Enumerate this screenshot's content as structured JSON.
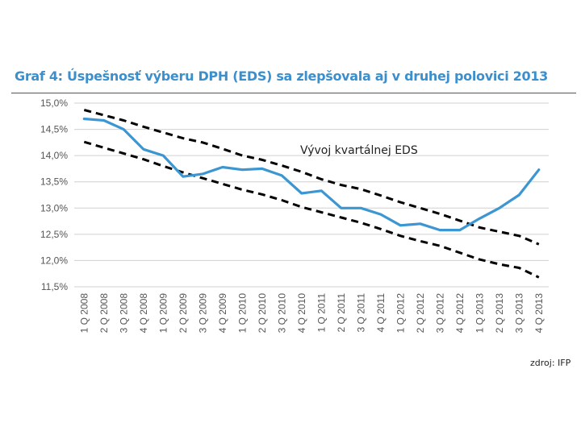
{
  "chart_data": {
    "type": "line",
    "title": "Graf 4: Úspešnosť výberu DPH (EDS) sa zlepšovala aj v druhej polovici 2013",
    "source": "zdroj: IFP",
    "annotation": "Vývoj kvartálnej EDS",
    "categories": [
      "1 Q 2008",
      "2 Q 2008",
      "3 Q 2008",
      "4 Q 2008",
      "1 Q 2009",
      "2 Q 2009",
      "3 Q 2009",
      "4 Q 2009",
      "1 Q 2010",
      "2 Q 2010",
      "3 Q 2010",
      "4 Q 2010",
      "1 Q 2011",
      "2 Q 2011",
      "3 Q 2011",
      "4 Q 2011",
      "1 Q 2012",
      "2 Q 2012",
      "3 Q 2012",
      "4 Q 2012",
      "1 Q 2013",
      "2 Q 2013",
      "3 Q 2013",
      "4 Q 2013"
    ],
    "y_tick_labels": [
      "15,0%",
      "14,5%",
      "14,0%",
      "13,5%",
      "13,0%",
      "12,5%",
      "12,0%",
      "11,5%"
    ],
    "y_ticks": [
      15.0,
      14.5,
      14.0,
      13.5,
      13.0,
      12.5,
      12.0,
      11.5
    ],
    "ylim": [
      11.5,
      15.0
    ],
    "grid": true,
    "series": [
      {
        "values": [
          14.7,
          14.67,
          14.5,
          14.12,
          14.0,
          13.6,
          13.65,
          13.78,
          13.73,
          13.75,
          13.62,
          13.28,
          13.33,
          13.0,
          13.0,
          12.88,
          12.67,
          12.7,
          12.58,
          12.58,
          12.8,
          13.0,
          13.25,
          13.73
        ]
      },
      {
        "values": [
          14.87,
          14.77,
          14.67,
          14.55,
          14.44,
          14.33,
          14.25,
          14.13,
          14.0,
          13.92,
          13.81,
          13.69,
          13.55,
          13.44,
          13.36,
          13.24,
          13.11,
          13.0,
          12.89,
          12.76,
          12.63,
          12.55,
          12.47,
          12.31
        ]
      },
      {
        "values": [
          14.26,
          14.15,
          14.04,
          13.93,
          13.8,
          13.68,
          13.57,
          13.46,
          13.35,
          13.26,
          13.15,
          13.02,
          12.92,
          12.82,
          12.72,
          12.6,
          12.47,
          12.37,
          12.28,
          12.15,
          12.02,
          11.93,
          11.86,
          11.68
        ]
      }
    ],
    "colors": {
      "main": "#3c96d2",
      "band": "#000000",
      "grid": "#d0d0d0",
      "title": "#3b8fcc"
    }
  }
}
